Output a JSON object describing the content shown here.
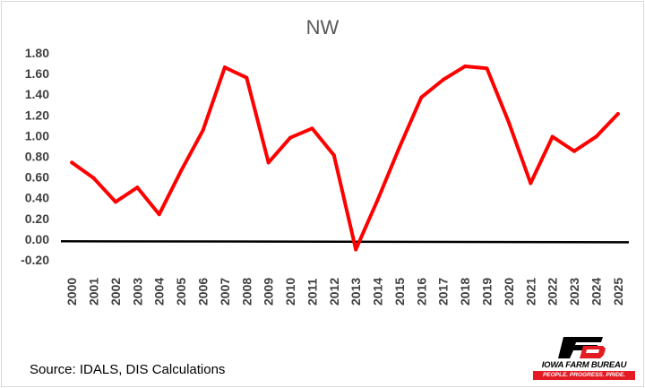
{
  "chart_data": {
    "type": "line",
    "title": "NW",
    "xlabel": "",
    "ylabel": "",
    "ylim": [
      -0.2,
      1.8
    ],
    "y_ticks": [
      "-0.20",
      "0.00",
      "0.20",
      "0.40",
      "0.60",
      "0.80",
      "1.00",
      "1.20",
      "1.40",
      "1.60",
      "1.80"
    ],
    "y_tick_values": [
      -0.2,
      0.0,
      0.2,
      0.4,
      0.6,
      0.8,
      1.0,
      1.2,
      1.4,
      1.6,
      1.8
    ],
    "categories": [
      "2000",
      "2001",
      "2002",
      "2003",
      "2004",
      "2005",
      "2006",
      "2007",
      "2008",
      "2009",
      "2010",
      "2011",
      "2012",
      "2013",
      "2014",
      "2015",
      "2016",
      "2017",
      "2018",
      "2019",
      "2020",
      "2021",
      "2022",
      "2023",
      "2024",
      "2025"
    ],
    "series": [
      {
        "color": "#ff0000",
        "values": [
          0.74,
          0.59,
          0.36,
          0.5,
          0.24,
          0.66,
          1.05,
          1.66,
          1.56,
          0.74,
          0.98,
          1.07,
          0.81,
          -0.1,
          0.38,
          0.89,
          1.37,
          1.54,
          1.67,
          1.65,
          1.13,
          0.54,
          0.99,
          0.85,
          0.99,
          1.21
        ]
      }
    ],
    "reference_line": {
      "start": -0.02,
      "end": -0.03,
      "color": "#000000"
    },
    "grid": false,
    "legend": "none"
  },
  "source_text": "Source: IDALS, DIS Calculations",
  "logo": {
    "name": "IOWA FARM BUREAU",
    "tagline": "PEOPLE. PROGRESS. PRIDE.",
    "brand_color": "#e31b23"
  }
}
